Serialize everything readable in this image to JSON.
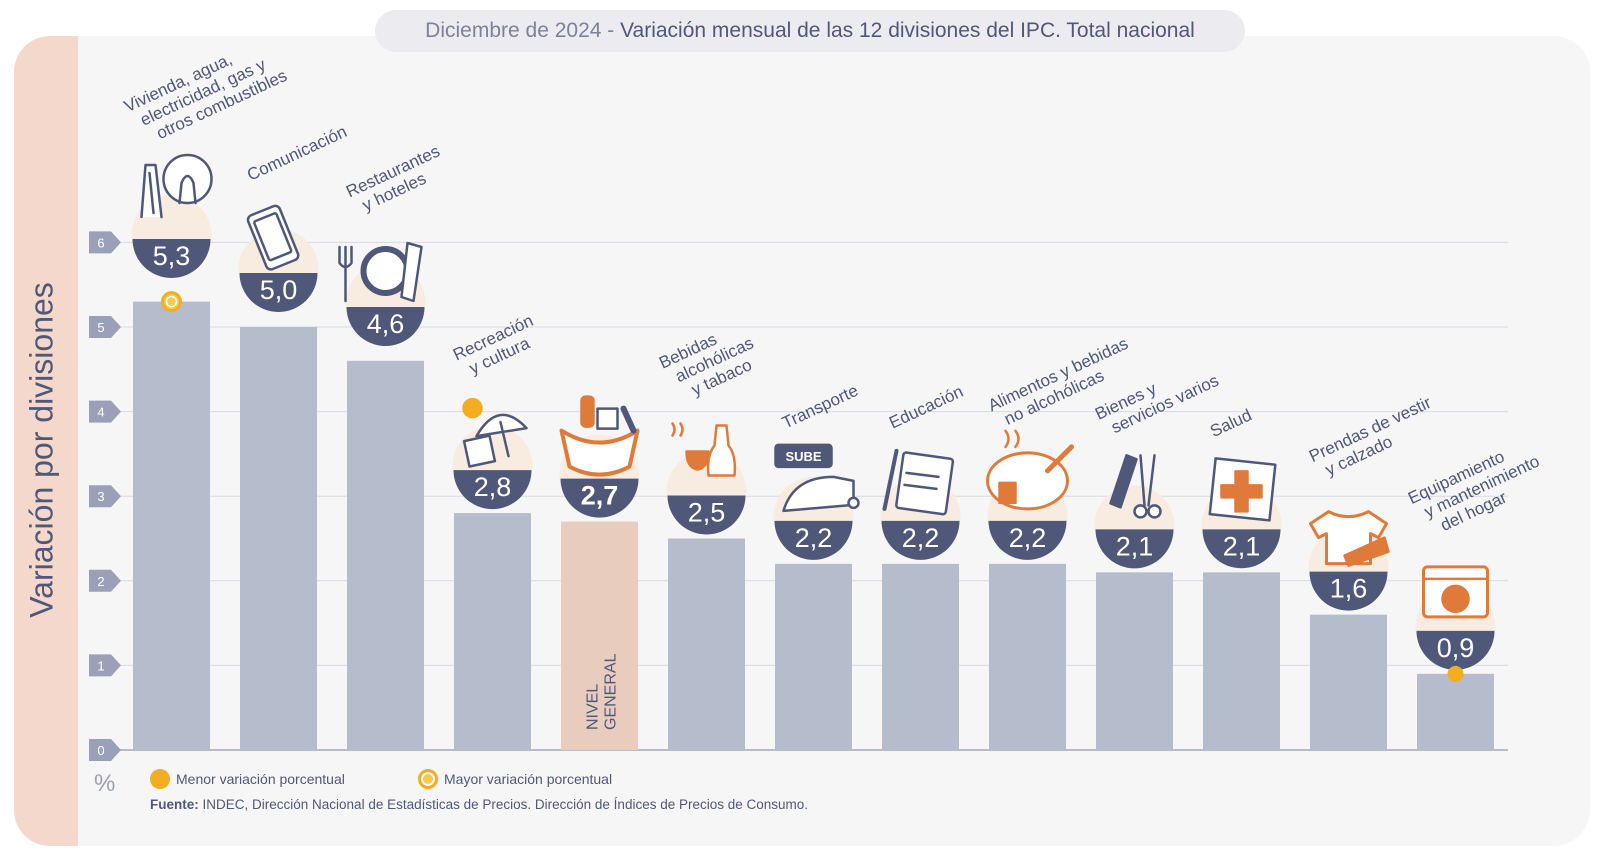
{
  "header": {
    "date": "Diciembre de 2024",
    "separator": " - ",
    "title": "Variación mensual de las 12 divisiones del IPC. Total nacional"
  },
  "y_axis_title": "Variación por divisiones",
  "unit": "%",
  "legend": {
    "min_label": "Menor variación porcentual",
    "max_label": "Mayor variación porcentual"
  },
  "source": {
    "label": "Fuente:",
    "text": "INDEC, Dirección Nacional de Estadísticas de Precios. Dirección de Índices de Precios de Consumo."
  },
  "colors": {
    "bar": "#b5bccb",
    "general_bar": "#e8cdbf",
    "badge": "#4f5878",
    "accent_orange": "#e07a3a",
    "marker": "#f2ad22"
  },
  "chart_data": {
    "type": "bar",
    "ylim": [
      0,
      6
    ],
    "yticks": [
      "0",
      "1",
      "2",
      "3",
      "4",
      "5",
      "6"
    ],
    "grid": true,
    "categories": [
      [
        "Vivienda, agua,",
        "electricidad, gas y",
        "otros combustibles"
      ],
      [
        "Comunicación"
      ],
      [
        "Restaurantes",
        "y hoteles"
      ],
      [
        "Recreación",
        "y cultura"
      ],
      [
        "NIVEL",
        "GENERAL"
      ],
      [
        "Bebidas",
        "alcohólicas",
        "y tabaco"
      ],
      [
        "Transporte"
      ],
      [
        "Educación"
      ],
      [
        "Alimentos y bebidas",
        "no alcohólicas"
      ],
      [
        "Bienes y",
        "servicios varios"
      ],
      [
        "Salud"
      ],
      [
        "Prendas de vestir",
        "y calzado"
      ],
      [
        "Equipamiento",
        "y mantenimiento",
        "del hogar"
      ]
    ],
    "values": [
      5.3,
      5.0,
      4.6,
      2.8,
      2.7,
      2.5,
      2.2,
      2.2,
      2.2,
      2.1,
      2.1,
      1.6,
      0.9
    ],
    "value_labels": [
      "5,3",
      "5,0",
      "4,6",
      "2,8",
      "2,7",
      "2,5",
      "2,2",
      "2,2",
      "2,2",
      "2,1",
      "2,1",
      "1,6",
      "0,9"
    ],
    "icons": [
      "housing-icon",
      "phone-icon",
      "restaurant-icon",
      "recreation-icon",
      "shopping-bag-icon",
      "beverages-icon",
      "bus-icon",
      "notebook-icon",
      "food-icon",
      "comb-scissors-icon",
      "health-cross-icon",
      "tshirt-icon",
      "washing-machine-icon"
    ],
    "highlight": "NIVEL GENERAL",
    "max_marker": "Vivienda, agua, electricidad, gas y otros combustibles",
    "min_marker": "Equipamiento y mantenimiento del hogar"
  }
}
